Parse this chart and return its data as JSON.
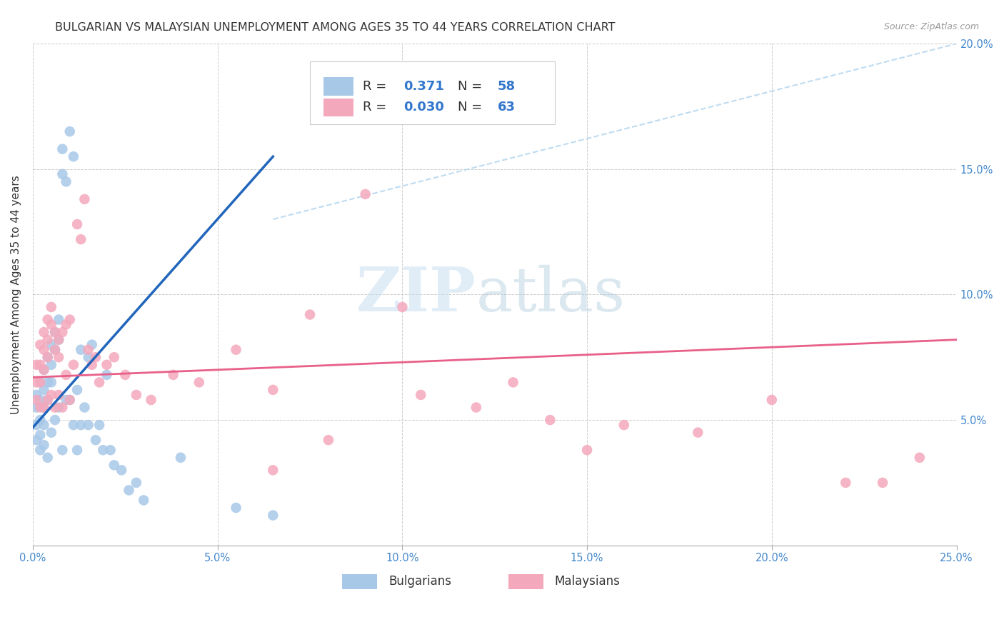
{
  "title": "BULGARIAN VS MALAYSIAN UNEMPLOYMENT AMONG AGES 35 TO 44 YEARS CORRELATION CHART",
  "source": "Source: ZipAtlas.com",
  "ylabel": "Unemployment Among Ages 35 to 44 years",
  "xlim": [
    0.0,
    0.25
  ],
  "ylim": [
    0.0,
    0.2
  ],
  "xticks": [
    0.0,
    0.05,
    0.1,
    0.15,
    0.2,
    0.25
  ],
  "yticks": [
    0.0,
    0.05,
    0.1,
    0.15,
    0.2
  ],
  "xtick_labels": [
    "0.0%",
    "5.0%",
    "10.0%",
    "15.0%",
    "20.0%",
    "25.0%"
  ],
  "ytick_labels": [
    "",
    "5.0%",
    "10.0%",
    "15.0%",
    "20.0%"
  ],
  "bulgarian_color": "#a8c8e8",
  "malaysian_color": "#f4a8bc",
  "bulgarian_line_color": "#2266bb",
  "malaysian_line_color": "#e8608a",
  "diagonal_color": "#b8d8f0",
  "R_bulgarian": 0.371,
  "N_bulgarian": 58,
  "R_malaysian": 0.03,
  "N_malaysian": 63,
  "bul_line_x": [
    0.0,
    0.065
  ],
  "bul_line_y": [
    0.047,
    0.155
  ],
  "mal_line_x": [
    0.0,
    0.25
  ],
  "mal_line_y": [
    0.067,
    0.082
  ],
  "diag_line_x": [
    0.065,
    0.25
  ],
  "diag_line_y": [
    0.13,
    0.2
  ],
  "bulgarians_x": [
    0.001,
    0.001,
    0.001,
    0.001,
    0.002,
    0.002,
    0.002,
    0.002,
    0.002,
    0.003,
    0.003,
    0.003,
    0.003,
    0.003,
    0.004,
    0.004,
    0.004,
    0.004,
    0.005,
    0.005,
    0.005,
    0.005,
    0.006,
    0.006,
    0.006,
    0.007,
    0.007,
    0.007,
    0.008,
    0.008,
    0.008,
    0.009,
    0.009,
    0.01,
    0.01,
    0.011,
    0.011,
    0.012,
    0.012,
    0.013,
    0.013,
    0.014,
    0.015,
    0.015,
    0.016,
    0.017,
    0.018,
    0.019,
    0.02,
    0.021,
    0.022,
    0.024,
    0.026,
    0.028,
    0.03,
    0.04,
    0.055,
    0.065
  ],
  "bulgarians_y": [
    0.06,
    0.055,
    0.048,
    0.042,
    0.065,
    0.058,
    0.05,
    0.044,
    0.038,
    0.07,
    0.062,
    0.055,
    0.048,
    0.04,
    0.075,
    0.065,
    0.058,
    0.035,
    0.08,
    0.072,
    0.065,
    0.045,
    0.085,
    0.078,
    0.05,
    0.09,
    0.082,
    0.055,
    0.158,
    0.148,
    0.038,
    0.145,
    0.058,
    0.165,
    0.058,
    0.155,
    0.048,
    0.062,
    0.038,
    0.078,
    0.048,
    0.055,
    0.075,
    0.048,
    0.08,
    0.042,
    0.048,
    0.038,
    0.068,
    0.038,
    0.032,
    0.03,
    0.022,
    0.025,
    0.018,
    0.035,
    0.015,
    0.012
  ],
  "malaysians_x": [
    0.001,
    0.001,
    0.001,
    0.002,
    0.002,
    0.002,
    0.002,
    0.003,
    0.003,
    0.003,
    0.003,
    0.004,
    0.004,
    0.004,
    0.004,
    0.005,
    0.005,
    0.005,
    0.006,
    0.006,
    0.006,
    0.007,
    0.007,
    0.007,
    0.008,
    0.008,
    0.009,
    0.009,
    0.01,
    0.01,
    0.011,
    0.012,
    0.013,
    0.014,
    0.015,
    0.016,
    0.017,
    0.018,
    0.02,
    0.022,
    0.025,
    0.028,
    0.032,
    0.038,
    0.045,
    0.055,
    0.065,
    0.075,
    0.09,
    0.105,
    0.12,
    0.14,
    0.16,
    0.18,
    0.2,
    0.22,
    0.23,
    0.24,
    0.1,
    0.13,
    0.15,
    0.065,
    0.08
  ],
  "malaysians_y": [
    0.072,
    0.065,
    0.058,
    0.08,
    0.072,
    0.065,
    0.055,
    0.085,
    0.078,
    0.07,
    0.055,
    0.09,
    0.082,
    0.075,
    0.058,
    0.095,
    0.088,
    0.06,
    0.085,
    0.078,
    0.055,
    0.082,
    0.075,
    0.06,
    0.085,
    0.055,
    0.088,
    0.068,
    0.09,
    0.058,
    0.072,
    0.128,
    0.122,
    0.138,
    0.078,
    0.072,
    0.075,
    0.065,
    0.072,
    0.075,
    0.068,
    0.06,
    0.058,
    0.068,
    0.065,
    0.078,
    0.062,
    0.092,
    0.14,
    0.06,
    0.055,
    0.05,
    0.048,
    0.045,
    0.058,
    0.025,
    0.025,
    0.035,
    0.095,
    0.065,
    0.038,
    0.03,
    0.042
  ],
  "watermark_zip": "ZIP",
  "watermark_atlas": "atlas",
  "background_color": "#ffffff",
  "grid_color": "#cccccc",
  "title_fontsize": 11.5,
  "axis_label_fontsize": 11,
  "tick_fontsize": 10.5,
  "legend_fontsize": 13
}
